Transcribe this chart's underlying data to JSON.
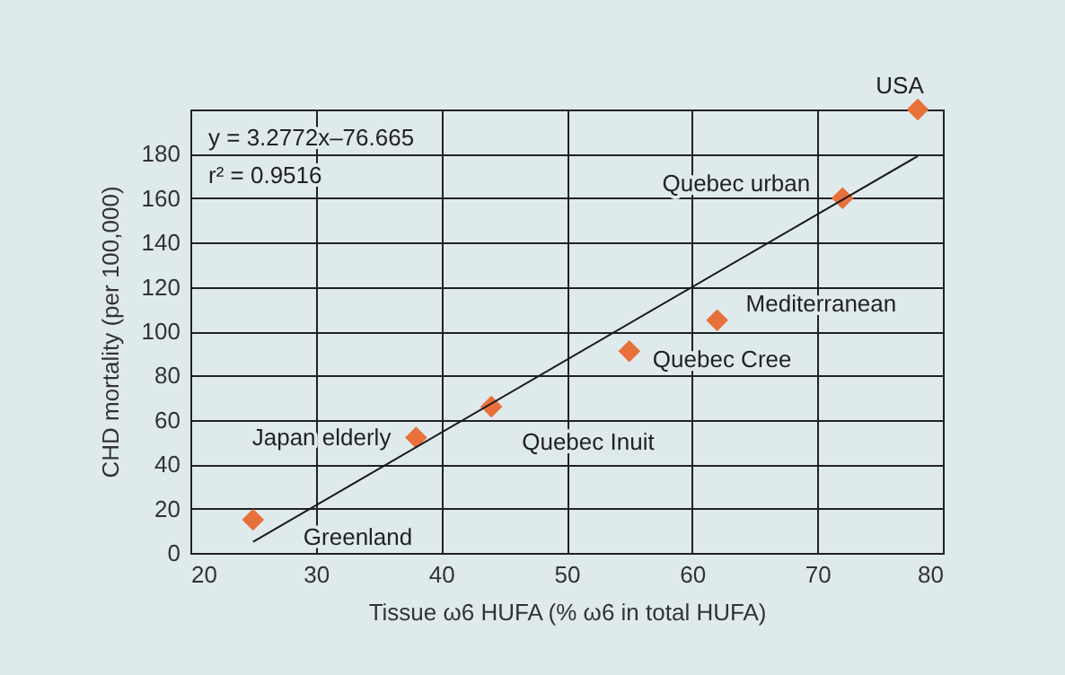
{
  "chart_data": {
    "type": "scatter",
    "xlabel": "Tissue ω6 HUFA (% ω6 in total HUFA)",
    "ylabel": "CHD mortality (per 100,000)",
    "xlim": [
      20,
      80
    ],
    "xticks": [
      20,
      30,
      40,
      50,
      60,
      70,
      80
    ],
    "ylim": [
      0,
      200
    ],
    "yticks": [
      0,
      20,
      40,
      60,
      80,
      100,
      120,
      140,
      160,
      180
    ],
    "grid": true,
    "marker": "diamond",
    "series": [
      {
        "color": "#e8703a",
        "x": [
          25,
          38,
          44,
          55,
          62,
          72,
          78
        ],
        "values": [
          15,
          52,
          66,
          91,
          105,
          160,
          200
        ]
      },
      {
        "type": "line",
        "marker": "none",
        "color": "#1a1a1a",
        "x": [
          25,
          78
        ],
        "values": [
          5,
          179
        ]
      }
    ],
    "annotations": [
      "y = 3.2772x–76.665",
      "r² = 0.9516",
      {
        "text": "Greenland",
        "x": 25,
        "y": 15
      },
      {
        "text": "Japan elderly",
        "x": 38,
        "y": 52
      },
      {
        "text": "Quebec Inuit",
        "x": 44,
        "y": 66
      },
      {
        "text": "Quebec Cree",
        "x": 55,
        "y": 91
      },
      {
        "text": "Mediterranean",
        "x": 62,
        "y": 105
      },
      {
        "text": "Quebec urban",
        "x": 72,
        "y": 160
      },
      {
        "text": "USA",
        "x": 78,
        "y": 200
      }
    ]
  }
}
